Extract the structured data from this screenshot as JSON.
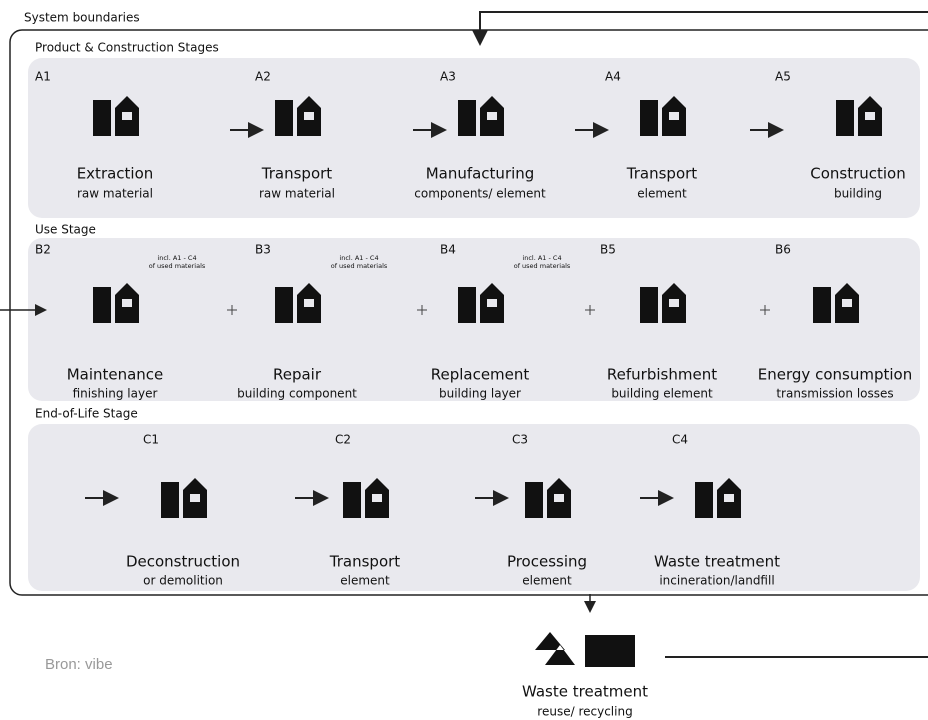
{
  "system_boundaries": "System boundaries",
  "stages": [
    {
      "title": "Product & Construction Stages",
      "modules": [
        {
          "code": "A1",
          "name": "Extraction",
          "detail": "raw material"
        },
        {
          "code": "A2",
          "name": "Transport",
          "detail": "raw material"
        },
        {
          "code": "A3",
          "name": "Manufacturing",
          "detail": "components/ element"
        },
        {
          "code": "A4",
          "name": "Transport",
          "detail": "element"
        },
        {
          "code": "A5",
          "name": "Construction",
          "detail": "building"
        }
      ]
    },
    {
      "title": "Use Stage",
      "modules": [
        {
          "code": "B2",
          "name": "Maintenance",
          "detail": "finishing layer",
          "note": [
            "incl. A1 - C4",
            "of used materials"
          ]
        },
        {
          "code": "B3",
          "name": "Repair",
          "detail": "building component",
          "note": [
            "incl. A1 - C4",
            "of used materials"
          ]
        },
        {
          "code": "B4",
          "name": "Replacement",
          "detail": "building layer",
          "note": [
            "incl. A1 - C4",
            "of used materials"
          ]
        },
        {
          "code": "B5",
          "name": "Refurbishment",
          "detail": "building element"
        },
        {
          "code": "B6",
          "name": "Energy consumption",
          "detail": "transmission losses"
        }
      ]
    },
    {
      "title": "End-of-Life Stage",
      "modules": [
        {
          "code": "C1",
          "name": "Deconstruction",
          "detail": "or demolition"
        },
        {
          "code": "C2",
          "name": "Transport",
          "detail": "element"
        },
        {
          "code": "C3",
          "name": "Processing",
          "detail": "element"
        },
        {
          "code": "C4",
          "name": "Waste treatment",
          "detail": "incineration/landfill"
        }
      ]
    }
  ],
  "output": {
    "name": "Waste treatment",
    "detail": "reuse/ recycling"
  },
  "source": "Bron: vibe"
}
